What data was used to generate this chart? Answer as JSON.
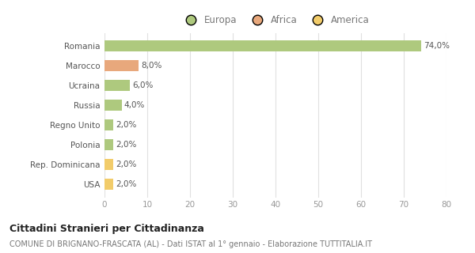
{
  "categories": [
    "Romania",
    "Marocco",
    "Ucraina",
    "Russia",
    "Regno Unito",
    "Polonia",
    "Rep. Dominicana",
    "USA"
  ],
  "values": [
    74.0,
    8.0,
    6.0,
    4.0,
    2.0,
    2.0,
    2.0,
    2.0
  ],
  "colors": [
    "#aec97e",
    "#e8a87c",
    "#aec97e",
    "#aec97e",
    "#aec97e",
    "#aec97e",
    "#f2cc6a",
    "#f2cc6a"
  ],
  "legend_labels": [
    "Europa",
    "Africa",
    "America"
  ],
  "legend_colors": [
    "#aec97e",
    "#e8a87c",
    "#f2cc6a"
  ],
  "xlim": [
    0,
    80
  ],
  "xticks": [
    0,
    10,
    20,
    30,
    40,
    50,
    60,
    70,
    80
  ],
  "title_main": "Cittadini Stranieri per Cittadinanza",
  "title_sub": "COMUNE DI BRIGNANO-FRASCATA (AL) - Dati ISTAT al 1° gennaio - Elaborazione TUTTITALIA.IT",
  "bg_color": "#ffffff",
  "grid_color": "#e0e0e0"
}
